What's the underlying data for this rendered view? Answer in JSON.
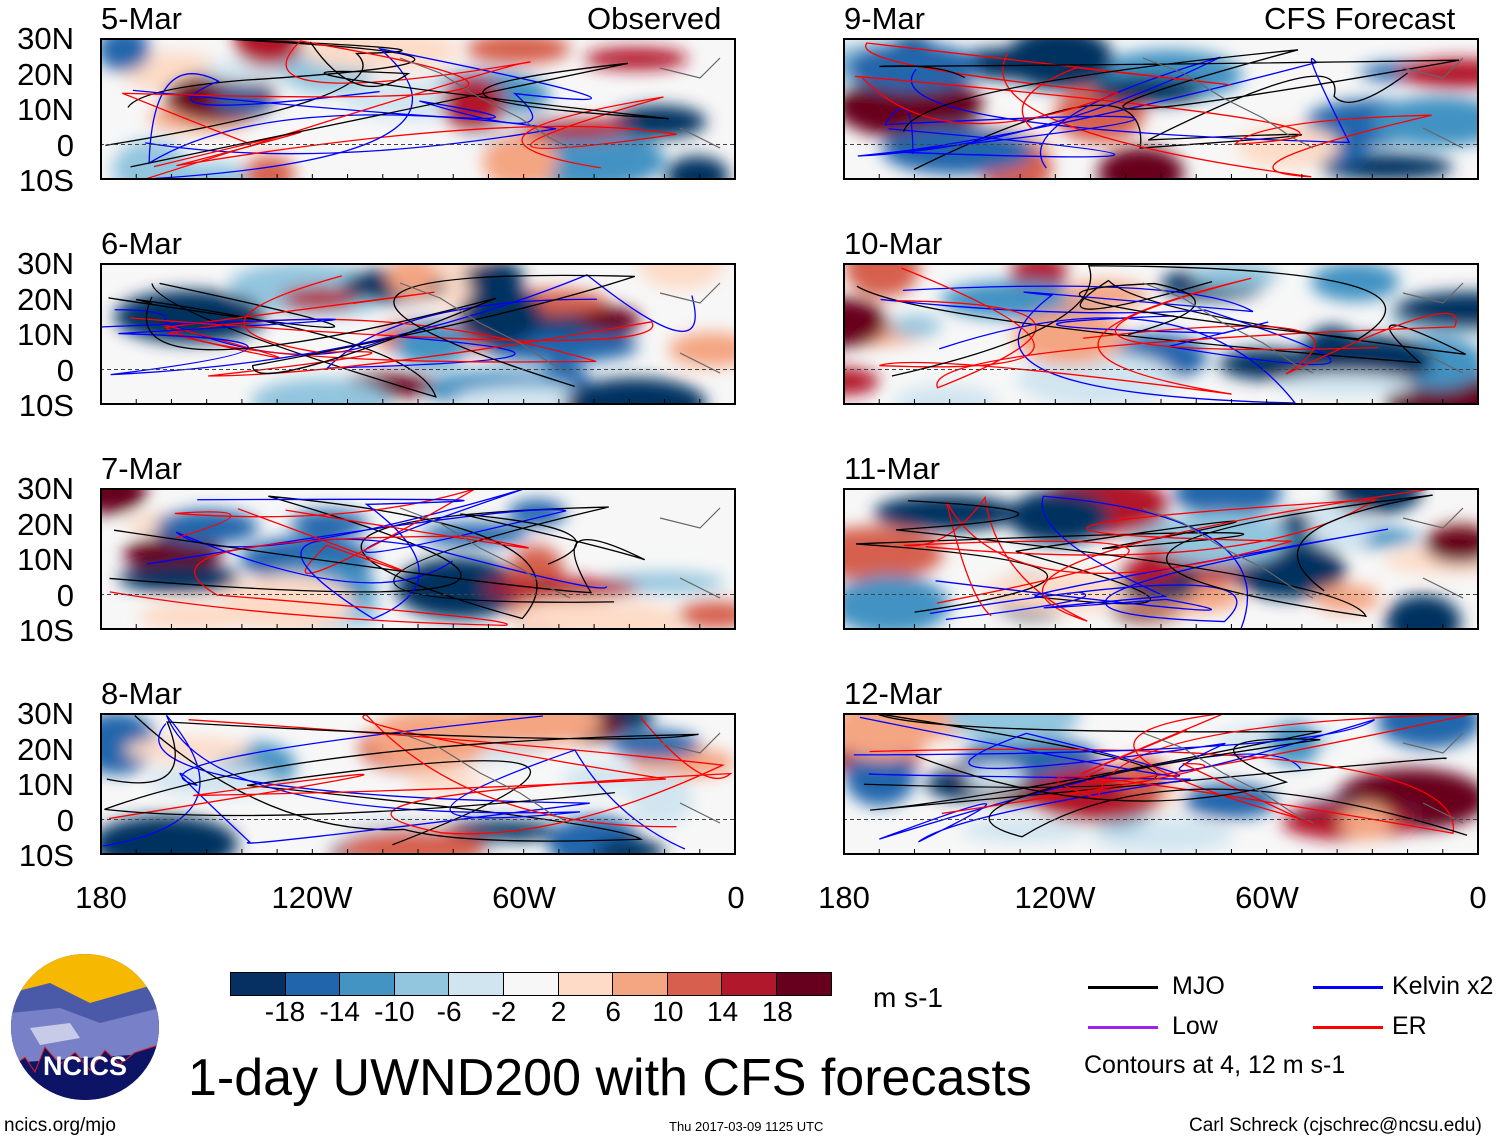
{
  "title": "1-day UWND200 with CFS forecasts",
  "observed_label": "Observed",
  "forecast_label": "CFS Forecast",
  "panels_left": [
    {
      "date": "5-Mar"
    },
    {
      "date": "6-Mar"
    },
    {
      "date": "7-Mar"
    },
    {
      "date": "8-Mar"
    }
  ],
  "panels_right": [
    {
      "date": "9-Mar"
    },
    {
      "date": "10-Mar"
    },
    {
      "date": "11-Mar"
    },
    {
      "date": "12-Mar"
    }
  ],
  "lat_labels": [
    "30N",
    "20N",
    "10N",
    "0",
    "10S"
  ],
  "lon_labels": [
    "180",
    "120W",
    "60W",
    "0"
  ],
  "colorbar": {
    "colors": [
      "#053061",
      "#2166ac",
      "#4393c3",
      "#92c5de",
      "#d1e5f0",
      "#f7f7f7",
      "#fddbc7",
      "#f4a582",
      "#d6604d",
      "#b2182b",
      "#67001f"
    ],
    "labels": [
      "-18",
      "-14",
      "-10",
      "-6",
      "-2",
      "2",
      "6",
      "10",
      "14",
      "18"
    ],
    "units": "m s-1"
  },
  "legend": {
    "items": [
      {
        "label": "MJO",
        "color": "#000000"
      },
      {
        "label": "Kelvin x2",
        "color": "#0000ff"
      },
      {
        "label": "Low",
        "color": "#a020f0"
      },
      {
        "label": "ER",
        "color": "#ff0000"
      }
    ],
    "note": "Contours at 4, 12 m s-1"
  },
  "logo": {
    "text": "NCICS"
  },
  "footer": {
    "url": "ncics.org/mjo",
    "timestamp": "Thu 2017-03-09 1125 UTC",
    "credit": "Carl Schreck (cjschrec@ncsu.edu)"
  }
}
